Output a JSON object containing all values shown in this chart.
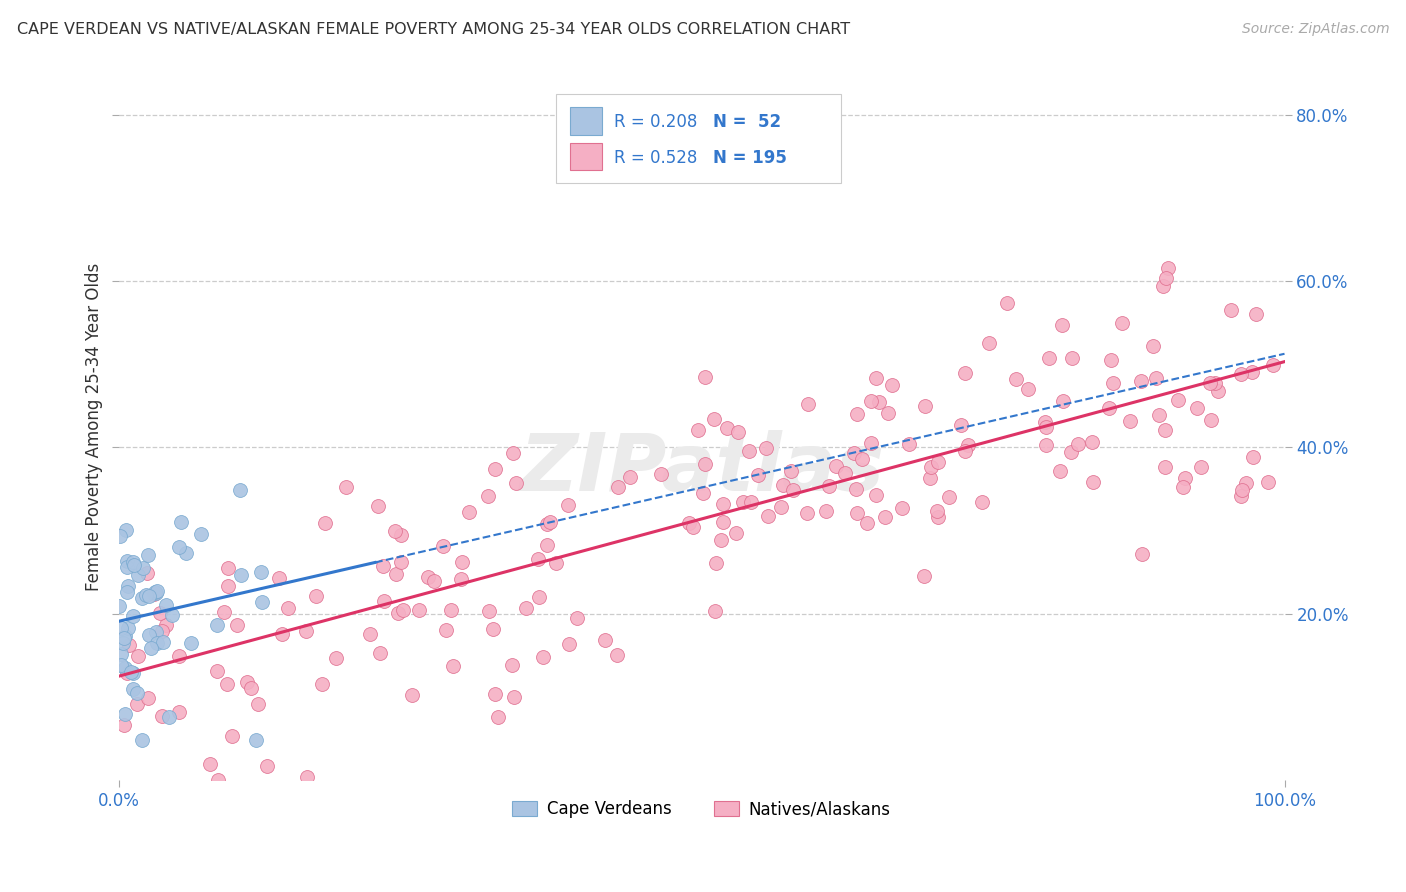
{
  "title": "CAPE VERDEAN VS NATIVE/ALASKAN FEMALE POVERTY AMONG 25-34 YEAR OLDS CORRELATION CHART",
  "source": "Source: ZipAtlas.com",
  "ylabel": "Female Poverty Among 25-34 Year Olds",
  "xlim": [
    0,
    1.0
  ],
  "ylim": [
    0,
    0.85
  ],
  "yticks": [
    0.2,
    0.4,
    0.6,
    0.8
  ],
  "ytick_labels": [
    "20.0%",
    "40.0%",
    "60.0%",
    "80.0%"
  ],
  "xtick_left_label": "0.0%",
  "xtick_right_label": "100.0%",
  "cape_verdean_color": "#aac4e2",
  "native_color": "#f5afc4",
  "cape_verdean_edge": "#7aaad0",
  "native_edge": "#e07090",
  "trendline_cape_color": "#3377cc",
  "trendline_native_color": "#dd3366",
  "grid_color": "#cccccc",
  "background_color": "#ffffff",
  "r_cape": 0.208,
  "n_cape": 52,
  "r_native": 0.528,
  "n_native": 195,
  "watermark": "ZIPatlas",
  "label_color_blue": "#3377cc",
  "label_color_dark": "#333333",
  "seed": 42
}
